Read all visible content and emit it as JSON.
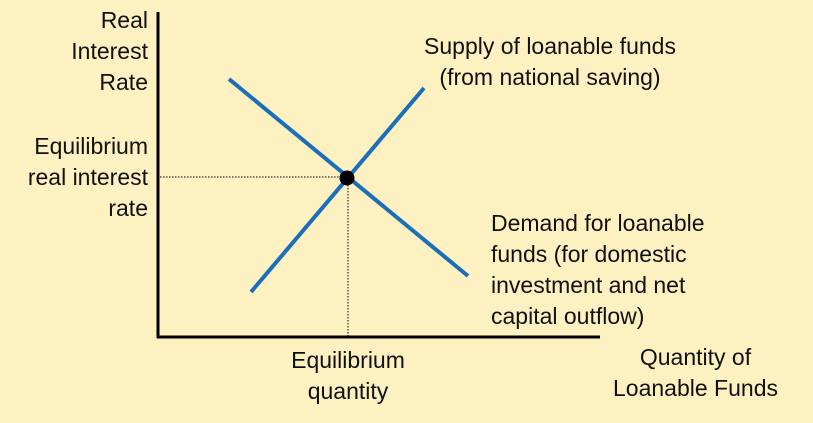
{
  "y_axis_label": "Real\nInterest\nRate",
  "x_axis_label": "Quantity of\nLoanable Funds",
  "equilibrium_rate_label": "Equilibrium\nreal interest\nrate",
  "equilibrium_quantity_label": "Equilibrium\nquantity",
  "supply_label": "Supply of loanable funds\n(from national saving)",
  "demand_label": "Demand for loanable\nfunds (for domestic\ninvestment and net\ncapital outflow)",
  "colors": {
    "background": "#fdf1c2",
    "curve": "#1a6fb8",
    "axis": "#000000"
  }
}
